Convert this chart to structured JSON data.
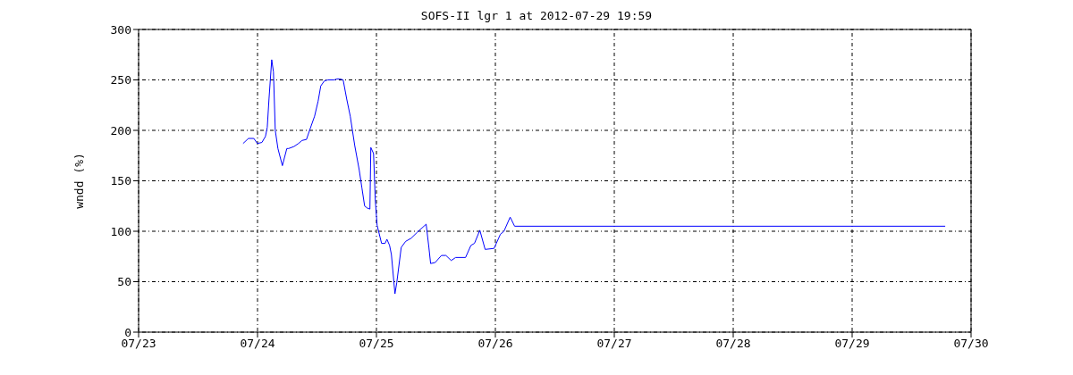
{
  "chart_data": {
    "type": "line",
    "title": "SOFS-II lgr 1 at 2012-07-29 19:59",
    "ylabel": "wndd (%)",
    "x": [
      "2012-07-23T21:05",
      "2012-07-23T22:10",
      "2012-07-23T23:15",
      "2012-07-23T23:58",
      "2012-07-24T00:53",
      "2012-07-24T01:36",
      "2012-07-24T01:58",
      "2012-07-24T02:19",
      "2012-07-24T02:52",
      "2012-07-24T03:13",
      "2012-07-24T03:35",
      "2012-07-24T04:07",
      "2012-07-24T05:01",
      "2012-07-24T05:55",
      "2012-07-24T06:17",
      "2012-07-24T07:22",
      "2012-07-24T08:16",
      "2012-07-24T08:59",
      "2012-07-24T09:53",
      "2012-07-24T10:26",
      "2012-07-24T11:31",
      "2012-07-24T12:14",
      "2012-07-24T12:46",
      "2012-07-24T13:29",
      "2012-07-24T14:13",
      "2012-07-24T15:29",
      "2012-07-24T16:01",
      "2012-07-24T16:34",
      "2012-07-24T17:17",
      "2012-07-24T18:00",
      "2012-07-24T18:43",
      "2012-07-24T19:37",
      "2012-07-24T20:31",
      "2012-07-24T21:04",
      "2012-07-24T21:37",
      "2012-07-24T22:09",
      "2012-07-24T22:41",
      "2012-07-24T22:52",
      "2012-07-24T23:25",
      "2012-07-24T23:46",
      "2012-07-25T00:08",
      "2012-07-25T01:02",
      "2012-07-25T01:45",
      "2012-07-25T02:07",
      "2012-07-25T02:39",
      "2012-07-25T03:01",
      "2012-07-25T03:44",
      "2012-07-25T04:06",
      "2012-07-25T05:00",
      "2012-07-25T05:54",
      "2012-07-25T06:59",
      "2012-07-25T08:14",
      "2012-07-25T10:02",
      "2012-07-25T10:35",
      "2012-07-25T10:56",
      "2012-07-25T11:51",
      "2012-07-25T13:07",
      "2012-07-25T14:01",
      "2012-07-25T15:05",
      "2012-07-25T15:59",
      "2012-07-25T17:59",
      "2012-07-25T19:04",
      "2012-07-25T19:47",
      "2012-07-25T20:52",
      "2012-07-25T21:56",
      "2012-07-25T23:44",
      "2012-07-26T01:01",
      "2012-07-26T01:44",
      "2012-07-26T02:59",
      "2012-07-26T03:53",
      "2012-07-29T18:47"
    ],
    "series": [
      {
        "color": "#0000ff",
        "values": [
          187,
          192,
          192,
          187,
          188,
          194,
          203,
          231,
          270,
          258,
          200,
          182,
          165,
          182,
          182,
          184,
          187,
          190,
          191,
          199,
          214,
          229,
          244,
          249,
          250,
          250,
          251,
          251,
          250,
          231,
          214,
          185,
          161,
          143,
          125,
          123,
          122,
          183,
          177,
          131,
          106,
          88,
          88,
          92,
          86,
          77,
          38,
          49,
          84,
          90,
          93,
          99,
          107,
          84,
          68,
          69,
          76,
          76,
          71,
          74,
          74,
          86,
          88,
          101,
          82,
          83,
          97,
          100,
          114,
          105,
          105
        ]
      }
    ],
    "xlim": [
      "2012-07-23",
      "2012-07-30"
    ],
    "xticks": [
      {
        "value": "2012-07-23",
        "label": "07/23"
      },
      {
        "value": "2012-07-24",
        "label": "07/24"
      },
      {
        "value": "2012-07-25",
        "label": "07/25"
      },
      {
        "value": "2012-07-26",
        "label": "07/26"
      },
      {
        "value": "2012-07-27",
        "label": "07/27"
      },
      {
        "value": "2012-07-28",
        "label": "07/28"
      },
      {
        "value": "2012-07-29",
        "label": "07/29"
      },
      {
        "value": "2012-07-30",
        "label": "07/30"
      }
    ],
    "ylim": [
      0,
      300
    ],
    "yticks": [
      0,
      50,
      100,
      150,
      200,
      250,
      300
    ],
    "grid": true,
    "marker": "none",
    "line_style": "solid",
    "legend": false
  }
}
